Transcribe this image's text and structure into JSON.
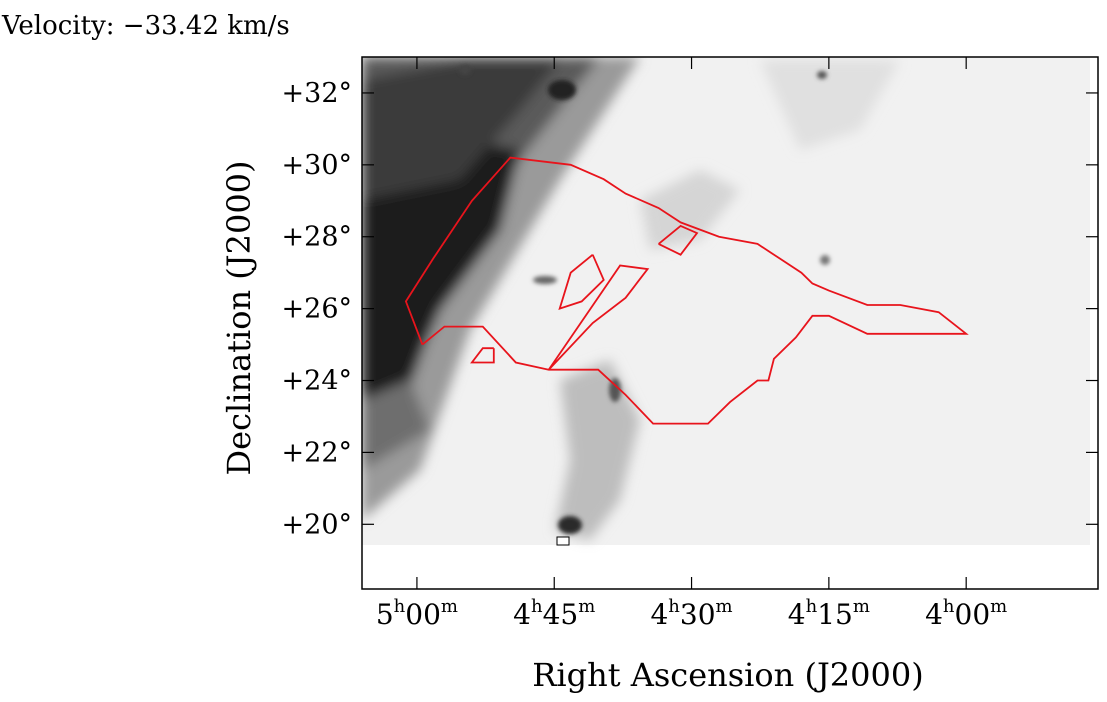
{
  "header": {
    "velocity_label": "Velocity: −33.42 km/s"
  },
  "chart_data": {
    "type": "heatmap",
    "title": "",
    "xlabel": "Right Ascension (J2000)",
    "ylabel": "Declination (J2000)",
    "xlim_hours": [
      5.1,
      3.76
    ],
    "ylim_deg": [
      18.2,
      33.0
    ],
    "grid": false,
    "colormap": "grayscale-inverted",
    "x_ticks": [
      {
        "value": 5.0,
        "h": "5",
        "m": "00"
      },
      {
        "value": 4.75,
        "h": "4",
        "m": "45"
      },
      {
        "value": 4.5,
        "h": "4",
        "m": "30"
      },
      {
        "value": 4.25,
        "h": "4",
        "m": "15"
      },
      {
        "value": 4.0,
        "h": "4",
        "m": "00"
      }
    ],
    "y_ticks": [
      {
        "value": 20,
        "label": "+20°"
      },
      {
        "value": 22,
        "label": "+22°"
      },
      {
        "value": 24,
        "label": "+24°"
      },
      {
        "value": 26,
        "label": "+26°"
      },
      {
        "value": 28,
        "label": "+28°"
      },
      {
        "value": 30,
        "label": "+30°"
      },
      {
        "value": 32,
        "label": "+32°"
      }
    ],
    "contour_color": "#e8141c",
    "contours": [
      [
        [
          4.99,
          25.0
        ],
        [
          4.95,
          25.5
        ],
        [
          4.88,
          25.5
        ],
        [
          4.82,
          24.5
        ],
        [
          4.76,
          24.3
        ],
        [
          4.67,
          24.3
        ],
        [
          4.62,
          23.6
        ],
        [
          4.57,
          22.8
        ],
        [
          4.47,
          22.8
        ],
        [
          4.43,
          23.4
        ],
        [
          4.38,
          24.0
        ],
        [
          4.36,
          24.0
        ],
        [
          4.35,
          24.6
        ],
        [
          4.31,
          25.2
        ],
        [
          4.28,
          25.8
        ],
        [
          4.25,
          25.8
        ],
        [
          4.18,
          25.3
        ],
        [
          4.0,
          25.3
        ],
        [
          4.05,
          25.9
        ],
        [
          4.12,
          26.1
        ],
        [
          4.18,
          26.1
        ],
        [
          4.25,
          26.5
        ],
        [
          4.28,
          26.7
        ],
        [
          4.3,
          27.0
        ],
        [
          4.34,
          27.4
        ],
        [
          4.38,
          27.8
        ],
        [
          4.45,
          28.0
        ],
        [
          4.52,
          28.4
        ],
        [
          4.56,
          28.8
        ],
        [
          4.62,
          29.2
        ],
        [
          4.66,
          29.6
        ],
        [
          4.72,
          30.0
        ],
        [
          4.83,
          30.2
        ],
        [
          4.9,
          29.0
        ],
        [
          4.97,
          27.4
        ],
        [
          5.02,
          26.2
        ],
        [
          4.99,
          25.0
        ]
      ],
      [
        [
          4.76,
          24.3
        ],
        [
          4.63,
          27.2
        ],
        [
          4.58,
          27.1
        ],
        [
          4.62,
          26.3
        ],
        [
          4.68,
          25.6
        ],
        [
          4.76,
          24.3
        ]
      ],
      [
        [
          4.56,
          27.8
        ],
        [
          4.52,
          28.3
        ],
        [
          4.49,
          28.1
        ],
        [
          4.52,
          27.5
        ],
        [
          4.56,
          27.8
        ]
      ],
      [
        [
          4.68,
          27.5
        ],
        [
          4.72,
          27.0
        ],
        [
          4.74,
          26.0
        ],
        [
          4.7,
          26.2
        ],
        [
          4.66,
          26.8
        ],
        [
          4.68,
          27.5
        ]
      ],
      [
        [
          4.86,
          24.9
        ],
        [
          4.88,
          24.9
        ],
        [
          4.9,
          24.5
        ],
        [
          4.86,
          24.5
        ],
        [
          4.86,
          24.9
        ]
      ]
    ]
  }
}
